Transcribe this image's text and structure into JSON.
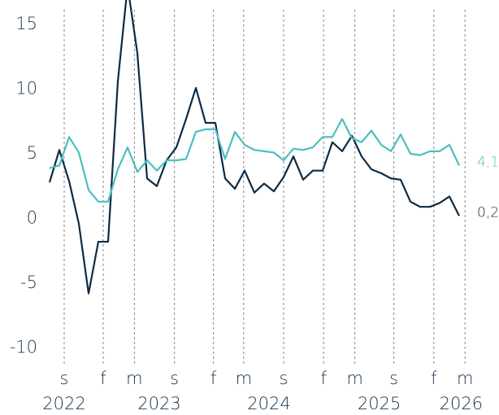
{
  "chart_data": {
    "type": "line",
    "categories": [
      null,
      null,
      null,
      null,
      null,
      null,
      null,
      null,
      null,
      null,
      null,
      null,
      null,
      null,
      null,
      null,
      null,
      null,
      null,
      null,
      null,
      null,
      null,
      null,
      null,
      null,
      null,
      null,
      null,
      null,
      null,
      null,
      null,
      null,
      null,
      null,
      null,
      null,
      null,
      null,
      null,
      null,
      null
    ],
    "xlim": [
      0,
      42
    ],
    "xticks": [
      {
        "value": 1.5,
        "label": "s"
      },
      {
        "value": 5.5,
        "label": "f"
      },
      {
        "value": 8.7,
        "label": "m"
      },
      {
        "value": 12.8,
        "label": "s"
      },
      {
        "value": 16.8,
        "label": "f"
      },
      {
        "value": 19.9,
        "label": "m"
      },
      {
        "value": 24,
        "label": "s"
      },
      {
        "value": 28.1,
        "label": "f"
      },
      {
        "value": 31.3,
        "label": "m"
      },
      {
        "value": 35.3,
        "label": "s"
      },
      {
        "value": 39.4,
        "label": "f"
      },
      {
        "value": 42.6,
        "label": "m"
      }
    ],
    "year_labels": [
      {
        "value": 1.5,
        "label": "2022"
      },
      {
        "value": 11.25,
        "label": "2023"
      },
      {
        "value": 22.5,
        "label": "2024"
      },
      {
        "value": 33.8,
        "label": "2025"
      },
      {
        "value": 42.2,
        "label": "2026"
      }
    ],
    "ylim": [
      -11.3,
      16.9
    ],
    "yticks": [
      -10,
      -5,
      0,
      5,
      10,
      15
    ],
    "grid": false,
    "series": [
      {
        "name": "navy",
        "color": "#0d2b45",
        "end_label": "0,2",
        "values": [
          2.8,
          5.3,
          2.9,
          -0.4,
          -5.8,
          -1.8,
          -1.8,
          10.6,
          18,
          12.8,
          3.1,
          2.5,
          4.5,
          5.5,
          7.7,
          10.1,
          7.4,
          7.4,
          3.1,
          2.3,
          3.7,
          2.0,
          2.7,
          2.1,
          3.2,
          4.8,
          3.0,
          3.7,
          3.7,
          5.9,
          5.2,
          6.4,
          4.8,
          3.8,
          3.5,
          3.1,
          3.0,
          1.3,
          0.9,
          0.9,
          1.2,
          1.7,
          0.2
        ]
      },
      {
        "name": "teal",
        "color": "#4bbfc0",
        "end_label": "4,1",
        "values": [
          3.9,
          4.1,
          6.3,
          5.1,
          2.2,
          1.3,
          1.3,
          3.8,
          5.5,
          3.6,
          4.5,
          3.7,
          4.5,
          4.5,
          4.6,
          6.7,
          6.9,
          6.9,
          4.6,
          6.7,
          5.7,
          5.3,
          5.2,
          5.1,
          4.5,
          5.4,
          5.3,
          5.5,
          6.3,
          6.3,
          7.7,
          6.2,
          5.9,
          6.8,
          5.7,
          5.2,
          6.5,
          5.0,
          4.9,
          5.2,
          5.2,
          5.7,
          4.1
        ]
      }
    ]
  }
}
